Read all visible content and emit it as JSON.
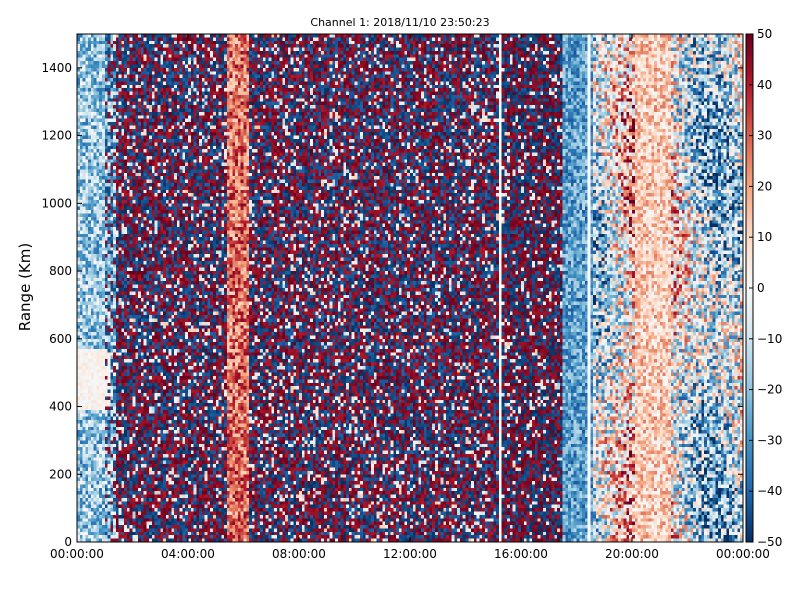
{
  "chart_data": {
    "type": "heatmap",
    "title": "Channel 1: 2018/11/10 23:50:23",
    "ylabel": "Range (Km)",
    "xlabel": "",
    "x_range": [
      "00:00:00",
      "24:00:00"
    ],
    "x_ticks": [
      "00:00:00",
      "04:00:00",
      "08:00:00",
      "12:00:00",
      "16:00:00",
      "20:00:00",
      "00:00:00"
    ],
    "ylim": [
      0,
      1500
    ],
    "y_ticks": [
      "0",
      "200",
      "400",
      "600",
      "800",
      "1000",
      "1200",
      "1400"
    ],
    "colorbar": {
      "range": [
        -50,
        50
      ],
      "ticks": [
        "50",
        "40",
        "30",
        "20",
        "10",
        "0",
        "−10",
        "−20",
        "−30",
        "−40",
        "−50"
      ],
      "colors": [
        "#053061",
        "#2166ac",
        "#4393c3",
        "#92c5de",
        "#d1e5f0",
        "#f7f7f7",
        "#fddbc7",
        "#f4a582",
        "#d6604d",
        "#b2182b",
        "#67001f"
      ]
    },
    "data_gaps_hours": [
      15.2,
      18.4
    ]
  }
}
